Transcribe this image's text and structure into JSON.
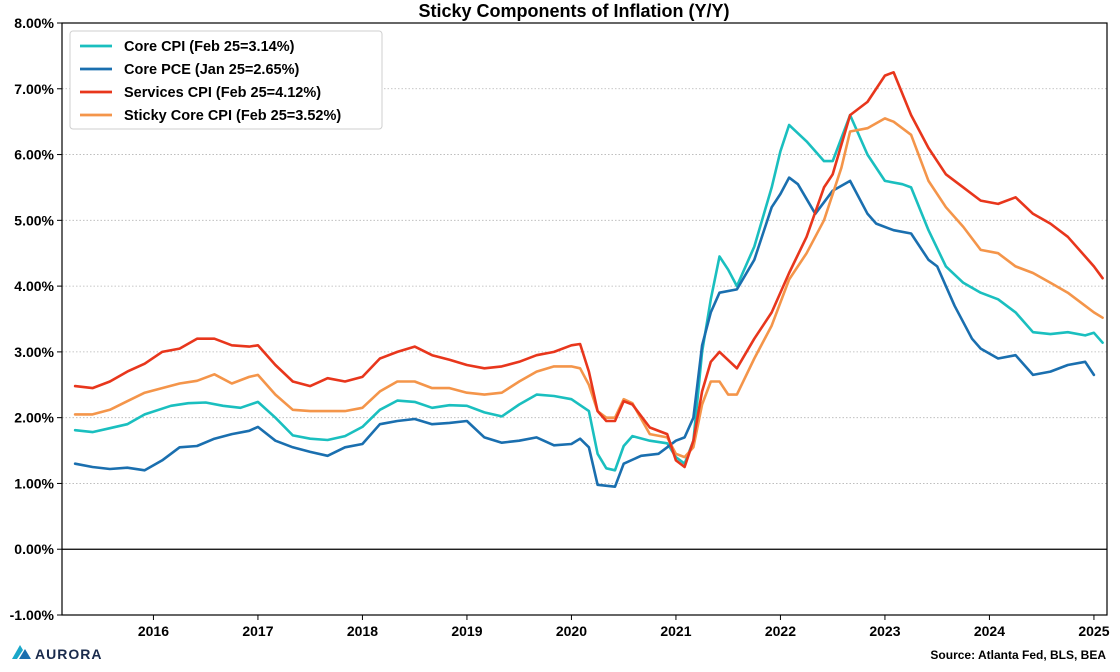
{
  "chart_data": {
    "type": "line",
    "title": "Sticky Components of Inflation (Y/Y)",
    "source": "Source: Atlanta Fed, BLS, BEA",
    "brand": "AURORA",
    "x_tick_labels": [
      "2016",
      "2017",
      "2018",
      "2019",
      "2020",
      "2021",
      "2022",
      "2023",
      "2024",
      "2025"
    ],
    "xlim": [
      "2015-04",
      "2025-02"
    ],
    "y_tick_labels": [
      "-1.00%",
      "0.00%",
      "1.00%",
      "2.00%",
      "3.00%",
      "4.00%",
      "5.00%",
      "6.00%",
      "7.00%",
      "8.00%"
    ],
    "ylim": [
      -1,
      8
    ],
    "y_ticks": [
      -1,
      0,
      1,
      2,
      3,
      4,
      5,
      6,
      7,
      8
    ],
    "grid": "horizontal dotted",
    "zero_line": true,
    "legend_position": "top-left",
    "series": [
      {
        "name": "Core CPI (Feb 25=3.14%)",
        "color": "#1ABFBF",
        "points": [
          [
            "2015-04",
            1.81
          ],
          [
            "2015-06",
            1.78
          ],
          [
            "2015-08",
            1.84
          ],
          [
            "2015-10",
            1.9
          ],
          [
            "2015-12",
            2.05
          ],
          [
            "2016-03",
            2.18
          ],
          [
            "2016-05",
            2.22
          ],
          [
            "2016-07",
            2.23
          ],
          [
            "2016-09",
            2.18
          ],
          [
            "2016-11",
            2.15
          ],
          [
            "2017-01",
            2.24
          ],
          [
            "2017-03",
            2.0
          ],
          [
            "2017-05",
            1.73
          ],
          [
            "2017-07",
            1.68
          ],
          [
            "2017-09",
            1.66
          ],
          [
            "2017-11",
            1.72
          ],
          [
            "2018-01",
            1.86
          ],
          [
            "2018-03",
            2.12
          ],
          [
            "2018-05",
            2.26
          ],
          [
            "2018-07",
            2.24
          ],
          [
            "2018-09",
            2.15
          ],
          [
            "2018-11",
            2.19
          ],
          [
            "2019-01",
            2.18
          ],
          [
            "2019-03",
            2.08
          ],
          [
            "2019-05",
            2.02
          ],
          [
            "2019-07",
            2.2
          ],
          [
            "2019-09",
            2.35
          ],
          [
            "2019-11",
            2.33
          ],
          [
            "2020-01",
            2.28
          ],
          [
            "2020-03",
            2.1
          ],
          [
            "2020-04",
            1.45
          ],
          [
            "2020-05",
            1.23
          ],
          [
            "2020-06",
            1.2
          ],
          [
            "2020-07",
            1.57
          ],
          [
            "2020-08",
            1.72
          ],
          [
            "2020-10",
            1.65
          ],
          [
            "2020-12",
            1.61
          ],
          [
            "2021-01",
            1.4
          ],
          [
            "2021-02",
            1.3
          ],
          [
            "2021-03",
            1.65
          ],
          [
            "2021-04",
            3.0
          ],
          [
            "2021-05",
            3.8
          ],
          [
            "2021-06",
            4.45
          ],
          [
            "2021-07",
            4.25
          ],
          [
            "2021-08",
            4.0
          ],
          [
            "2021-10",
            4.6
          ],
          [
            "2021-12",
            5.5
          ],
          [
            "2022-01",
            6.05
          ],
          [
            "2022-02",
            6.45
          ],
          [
            "2022-04",
            6.2
          ],
          [
            "2022-06",
            5.9
          ],
          [
            "2022-07",
            5.9
          ],
          [
            "2022-09",
            6.6
          ],
          [
            "2022-11",
            6.0
          ],
          [
            "2023-01",
            5.6
          ],
          [
            "2023-03",
            5.55
          ],
          [
            "2023-04",
            5.5
          ],
          [
            "2023-06",
            4.85
          ],
          [
            "2023-08",
            4.3
          ],
          [
            "2023-10",
            4.05
          ],
          [
            "2023-12",
            3.9
          ],
          [
            "2024-02",
            3.8
          ],
          [
            "2024-04",
            3.6
          ],
          [
            "2024-06",
            3.3
          ],
          [
            "2024-08",
            3.27
          ],
          [
            "2024-10",
            3.3
          ],
          [
            "2024-12",
            3.25
          ],
          [
            "2025-01",
            3.29
          ],
          [
            "2025-02",
            3.14
          ]
        ]
      },
      {
        "name": "Core PCE (Jan 25=2.65%)",
        "color": "#1A6FAF",
        "points": [
          [
            "2015-04",
            1.3
          ],
          [
            "2015-06",
            1.25
          ],
          [
            "2015-08",
            1.22
          ],
          [
            "2015-10",
            1.24
          ],
          [
            "2015-12",
            1.2
          ],
          [
            "2016-02",
            1.35
          ],
          [
            "2016-04",
            1.55
          ],
          [
            "2016-06",
            1.57
          ],
          [
            "2016-08",
            1.68
          ],
          [
            "2016-10",
            1.75
          ],
          [
            "2016-12",
            1.8
          ],
          [
            "2017-01",
            1.86
          ],
          [
            "2017-03",
            1.65
          ],
          [
            "2017-05",
            1.55
          ],
          [
            "2017-07",
            1.48
          ],
          [
            "2017-09",
            1.42
          ],
          [
            "2017-11",
            1.55
          ],
          [
            "2018-01",
            1.6
          ],
          [
            "2018-03",
            1.9
          ],
          [
            "2018-05",
            1.95
          ],
          [
            "2018-07",
            1.98
          ],
          [
            "2018-09",
            1.9
          ],
          [
            "2018-11",
            1.92
          ],
          [
            "2019-01",
            1.95
          ],
          [
            "2019-03",
            1.7
          ],
          [
            "2019-05",
            1.62
          ],
          [
            "2019-07",
            1.65
          ],
          [
            "2019-09",
            1.7
          ],
          [
            "2019-11",
            1.58
          ],
          [
            "2020-01",
            1.6
          ],
          [
            "2020-02",
            1.68
          ],
          [
            "2020-03",
            1.55
          ],
          [
            "2020-04",
            0.98
          ],
          [
            "2020-06",
            0.95
          ],
          [
            "2020-07",
            1.3
          ],
          [
            "2020-09",
            1.42
          ],
          [
            "2020-11",
            1.45
          ],
          [
            "2020-12",
            1.55
          ],
          [
            "2021-01",
            1.65
          ],
          [
            "2021-02",
            1.7
          ],
          [
            "2021-03",
            2.0
          ],
          [
            "2021-04",
            3.1
          ],
          [
            "2021-05",
            3.6
          ],
          [
            "2021-06",
            3.9
          ],
          [
            "2021-08",
            3.95
          ],
          [
            "2021-10",
            4.4
          ],
          [
            "2021-12",
            5.2
          ],
          [
            "2022-01",
            5.4
          ],
          [
            "2022-02",
            5.65
          ],
          [
            "2022-03",
            5.55
          ],
          [
            "2022-05",
            5.1
          ],
          [
            "2022-07",
            5.45
          ],
          [
            "2022-09",
            5.6
          ],
          [
            "2022-11",
            5.1
          ],
          [
            "2022-12",
            4.95
          ],
          [
            "2023-02",
            4.85
          ],
          [
            "2023-04",
            4.8
          ],
          [
            "2023-06",
            4.4
          ],
          [
            "2023-07",
            4.3
          ],
          [
            "2023-09",
            3.7
          ],
          [
            "2023-11",
            3.2
          ],
          [
            "2023-12",
            3.05
          ],
          [
            "2024-02",
            2.9
          ],
          [
            "2024-04",
            2.95
          ],
          [
            "2024-06",
            2.65
          ],
          [
            "2024-08",
            2.7
          ],
          [
            "2024-10",
            2.8
          ],
          [
            "2024-12",
            2.85
          ],
          [
            "2025-01",
            2.65
          ]
        ]
      },
      {
        "name": "Services CPI (Feb 25=4.12%)",
        "color": "#E8361C",
        "points": [
          [
            "2015-04",
            2.48
          ],
          [
            "2015-06",
            2.45
          ],
          [
            "2015-08",
            2.55
          ],
          [
            "2015-10",
            2.7
          ],
          [
            "2015-12",
            2.82
          ],
          [
            "2016-02",
            3.0
          ],
          [
            "2016-04",
            3.05
          ],
          [
            "2016-06",
            3.2
          ],
          [
            "2016-08",
            3.2
          ],
          [
            "2016-10",
            3.1
          ],
          [
            "2016-12",
            3.08
          ],
          [
            "2017-01",
            3.1
          ],
          [
            "2017-03",
            2.8
          ],
          [
            "2017-05",
            2.55
          ],
          [
            "2017-07",
            2.48
          ],
          [
            "2017-09",
            2.6
          ],
          [
            "2017-11",
            2.55
          ],
          [
            "2018-01",
            2.62
          ],
          [
            "2018-03",
            2.9
          ],
          [
            "2018-05",
            3.0
          ],
          [
            "2018-07",
            3.08
          ],
          [
            "2018-09",
            2.95
          ],
          [
            "2018-11",
            2.88
          ],
          [
            "2019-01",
            2.8
          ],
          [
            "2019-03",
            2.75
          ],
          [
            "2019-05",
            2.78
          ],
          [
            "2019-07",
            2.85
          ],
          [
            "2019-09",
            2.95
          ],
          [
            "2019-11",
            3.0
          ],
          [
            "2020-01",
            3.1
          ],
          [
            "2020-02",
            3.12
          ],
          [
            "2020-03",
            2.7
          ],
          [
            "2020-04",
            2.1
          ],
          [
            "2020-05",
            1.95
          ],
          [
            "2020-06",
            1.95
          ],
          [
            "2020-07",
            2.25
          ],
          [
            "2020-08",
            2.2
          ],
          [
            "2020-10",
            1.85
          ],
          [
            "2020-12",
            1.75
          ],
          [
            "2021-01",
            1.35
          ],
          [
            "2021-02",
            1.25
          ],
          [
            "2021-03",
            1.65
          ],
          [
            "2021-04",
            2.4
          ],
          [
            "2021-05",
            2.85
          ],
          [
            "2021-06",
            3.0
          ],
          [
            "2021-08",
            2.75
          ],
          [
            "2021-10",
            3.2
          ],
          [
            "2021-12",
            3.6
          ],
          [
            "2022-02",
            4.2
          ],
          [
            "2022-04",
            4.75
          ],
          [
            "2022-06",
            5.5
          ],
          [
            "2022-07",
            5.7
          ],
          [
            "2022-09",
            6.6
          ],
          [
            "2022-11",
            6.8
          ],
          [
            "2023-01",
            7.2
          ],
          [
            "2023-02",
            7.25
          ],
          [
            "2023-04",
            6.6
          ],
          [
            "2023-06",
            6.1
          ],
          [
            "2023-08",
            5.7
          ],
          [
            "2023-10",
            5.5
          ],
          [
            "2023-12",
            5.3
          ],
          [
            "2024-02",
            5.25
          ],
          [
            "2024-04",
            5.35
          ],
          [
            "2024-06",
            5.1
          ],
          [
            "2024-08",
            4.95
          ],
          [
            "2024-10",
            4.75
          ],
          [
            "2024-12",
            4.45
          ],
          [
            "2025-01",
            4.3
          ],
          [
            "2025-02",
            4.12
          ]
        ]
      },
      {
        "name": "Sticky Core CPI (Feb 25=3.52%)",
        "color": "#F4954A",
        "points": [
          [
            "2015-04",
            2.05
          ],
          [
            "2015-06",
            2.05
          ],
          [
            "2015-08",
            2.12
          ],
          [
            "2015-10",
            2.25
          ],
          [
            "2015-12",
            2.38
          ],
          [
            "2016-02",
            2.45
          ],
          [
            "2016-04",
            2.52
          ],
          [
            "2016-06",
            2.56
          ],
          [
            "2016-08",
            2.66
          ],
          [
            "2016-10",
            2.52
          ],
          [
            "2016-12",
            2.62
          ],
          [
            "2017-01",
            2.65
          ],
          [
            "2017-03",
            2.35
          ],
          [
            "2017-05",
            2.12
          ],
          [
            "2017-07",
            2.1
          ],
          [
            "2017-09",
            2.1
          ],
          [
            "2017-11",
            2.1
          ],
          [
            "2018-01",
            2.15
          ],
          [
            "2018-03",
            2.4
          ],
          [
            "2018-05",
            2.55
          ],
          [
            "2018-07",
            2.55
          ],
          [
            "2018-09",
            2.45
          ],
          [
            "2018-11",
            2.45
          ],
          [
            "2019-01",
            2.38
          ],
          [
            "2019-03",
            2.35
          ],
          [
            "2019-05",
            2.38
          ],
          [
            "2019-07",
            2.55
          ],
          [
            "2019-09",
            2.7
          ],
          [
            "2019-11",
            2.78
          ],
          [
            "2020-01",
            2.78
          ],
          [
            "2020-02",
            2.75
          ],
          [
            "2020-03",
            2.5
          ],
          [
            "2020-04",
            2.1
          ],
          [
            "2020-05",
            2.0
          ],
          [
            "2020-06",
            2.0
          ],
          [
            "2020-07",
            2.28
          ],
          [
            "2020-08",
            2.22
          ],
          [
            "2020-10",
            1.75
          ],
          [
            "2020-12",
            1.7
          ],
          [
            "2021-01",
            1.45
          ],
          [
            "2021-02",
            1.4
          ],
          [
            "2021-03",
            1.55
          ],
          [
            "2021-04",
            2.2
          ],
          [
            "2021-05",
            2.55
          ],
          [
            "2021-06",
            2.55
          ],
          [
            "2021-07",
            2.35
          ],
          [
            "2021-08",
            2.35
          ],
          [
            "2021-10",
            2.9
          ],
          [
            "2021-12",
            3.4
          ],
          [
            "2022-02",
            4.1
          ],
          [
            "2022-04",
            4.5
          ],
          [
            "2022-06",
            5.0
          ],
          [
            "2022-08",
            5.8
          ],
          [
            "2022-09",
            6.35
          ],
          [
            "2022-11",
            6.4
          ],
          [
            "2023-01",
            6.55
          ],
          [
            "2023-02",
            6.5
          ],
          [
            "2023-04",
            6.3
          ],
          [
            "2023-06",
            5.6
          ],
          [
            "2023-08",
            5.2
          ],
          [
            "2023-10",
            4.9
          ],
          [
            "2023-12",
            4.55
          ],
          [
            "2024-02",
            4.5
          ],
          [
            "2024-04",
            4.3
          ],
          [
            "2024-06",
            4.2
          ],
          [
            "2024-08",
            4.05
          ],
          [
            "2024-10",
            3.9
          ],
          [
            "2024-12",
            3.7
          ],
          [
            "2025-01",
            3.6
          ],
          [
            "2025-02",
            3.52
          ]
        ]
      }
    ]
  }
}
